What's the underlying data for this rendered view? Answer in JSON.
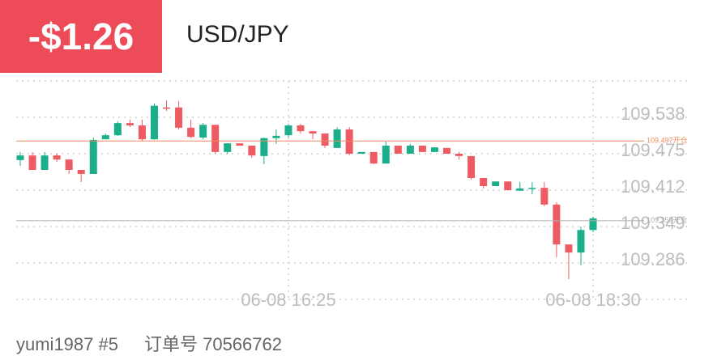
{
  "header": {
    "badge": "-$1.26",
    "symbol": "USD/JPY"
  },
  "footer": {
    "user": "yumi1987 #5",
    "order": "订单号 70566762"
  },
  "chart_data": {
    "type": "candlestick",
    "categories": [
      null,
      null,
      null,
      null,
      null,
      null,
      null,
      null,
      null,
      null,
      null,
      null,
      null,
      null,
      null,
      null,
      null,
      null,
      null,
      null,
      null,
      null,
      "06-08 16:25",
      null,
      null,
      null,
      null,
      null,
      null,
      null,
      null,
      null,
      null,
      null,
      null,
      null,
      null,
      null,
      null,
      null,
      null,
      null,
      null,
      null,
      null,
      null,
      null,
      "06-08 18:30"
    ],
    "open": [
      109.464,
      109.472,
      109.447,
      109.472,
      109.465,
      109.447,
      109.44,
      109.5,
      109.507,
      109.528,
      109.524,
      109.5,
      109.555,
      109.555,
      109.52,
      109.503,
      109.525,
      109.478,
      109.493,
      109.489,
      109.471,
      109.502,
      109.507,
      109.524,
      109.514,
      109.51,
      109.485,
      109.517,
      109.475,
      109.478,
      109.458,
      109.489,
      109.475,
      109.489,
      109.478,
      109.485,
      109.475,
      109.471,
      109.433,
      109.419,
      109.427,
      109.411,
      109.415,
      109.416,
      109.387,
      109.318,
      109.304,
      109.343
    ],
    "high": [
      109.478,
      109.478,
      109.478,
      109.475,
      109.465,
      109.447,
      109.503,
      109.51,
      109.531,
      109.534,
      109.534,
      109.562,
      109.567,
      109.566,
      109.534,
      109.528,
      109.525,
      109.493,
      109.493,
      109.489,
      109.503,
      109.517,
      109.527,
      109.527,
      109.514,
      109.51,
      109.521,
      109.521,
      109.478,
      109.478,
      109.496,
      109.489,
      109.492,
      109.489,
      109.486,
      109.485,
      109.478,
      109.471,
      109.433,
      109.427,
      109.427,
      109.426,
      109.426,
      109.426,
      109.391,
      109.318,
      109.349,
      109.366
    ],
    "low": [
      109.454,
      109.447,
      109.447,
      109.461,
      109.44,
      109.426,
      109.44,
      109.5,
      109.506,
      109.521,
      109.497,
      109.499,
      109.549,
      109.517,
      109.502,
      109.5,
      109.475,
      109.475,
      109.489,
      109.468,
      109.457,
      109.492,
      109.503,
      109.51,
      109.5,
      109.485,
      109.485,
      109.472,
      109.475,
      109.457,
      109.458,
      109.475,
      109.475,
      109.478,
      109.478,
      109.475,
      109.465,
      109.43,
      109.415,
      109.419,
      109.411,
      109.411,
      109.405,
      109.384,
      109.296,
      109.258,
      109.282,
      109.339
    ],
    "close": [
      109.472,
      109.447,
      109.472,
      109.465,
      109.447,
      109.44,
      109.499,
      109.507,
      109.528,
      109.524,
      109.5,
      109.558,
      109.553,
      109.52,
      109.504,
      109.525,
      109.478,
      109.493,
      109.489,
      109.472,
      109.502,
      109.506,
      109.524,
      109.514,
      109.51,
      109.489,
      109.517,
      109.475,
      109.478,
      109.458,
      109.489,
      109.475,
      109.489,
      109.478,
      109.486,
      109.475,
      109.471,
      109.433,
      109.419,
      109.427,
      109.412,
      109.415,
      109.416,
      109.387,
      109.318,
      109.304,
      109.343,
      109.363
    ],
    "up_color": "#1aae8a",
    "down_color": "#ef5b63",
    "ylim": [
      109.223,
      109.601
    ],
    "yticks": [
      109.286,
      109.349,
      109.412,
      109.475,
      109.538
    ],
    "grid": true,
    "lines": [
      {
        "value": 109.497,
        "label": "109.497开仓",
        "color": "#f08a5d"
      },
      {
        "value": 109.359,
        "label": "109.359开仓",
        "color": "#b0b0b0"
      }
    ]
  }
}
